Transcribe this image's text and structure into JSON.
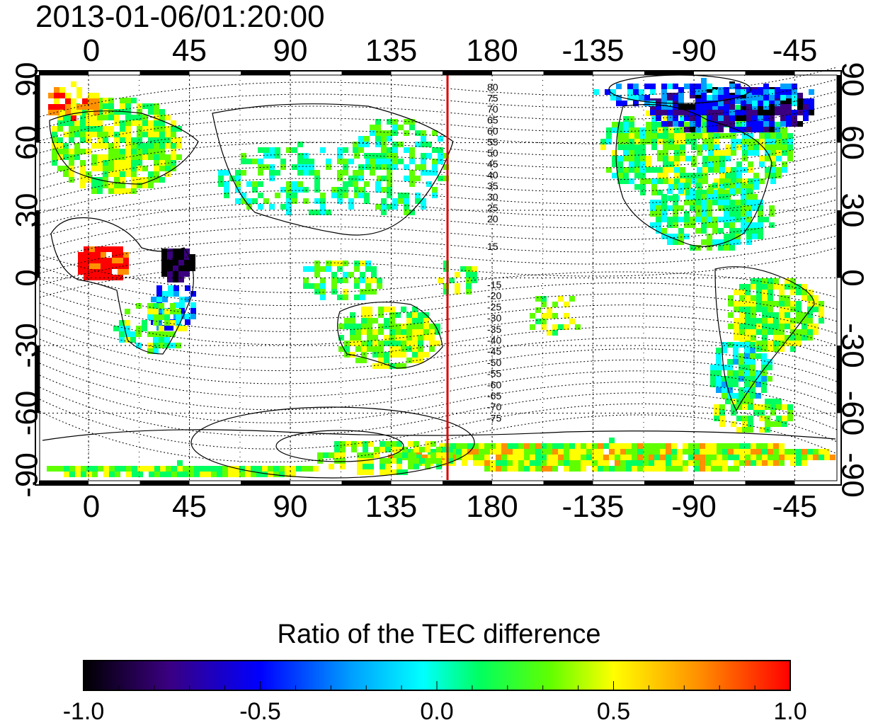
{
  "title": "2013-01-06/01:20:00",
  "map": {
    "x_tick_labels": [
      "0",
      "45",
      "90",
      "135",
      "180",
      "-135",
      "-90",
      "-45"
    ],
    "y_tick_labels": [
      "90",
      "60",
      "30",
      "0",
      "-30",
      "-60",
      "-90"
    ],
    "contour_labels_north": [
      "80",
      "75",
      "70",
      "65",
      "60",
      "55",
      "50",
      "45",
      "40",
      "35",
      "30",
      "25",
      "20",
      "15"
    ],
    "contour_labels_south": [
      "-15",
      "-20",
      "-25",
      "-30",
      "-35",
      "-40",
      "-45",
      "-50",
      "-55",
      "-60",
      "-65",
      "-70",
      "-75"
    ],
    "colors": {
      "reference_line": "#dd0000",
      "frame": "#000000",
      "background": "#ffffff"
    }
  },
  "colorbar": {
    "title": "Ratio of the TEC difference",
    "tick_labels": [
      "-1.0",
      "-0.5",
      "0.0",
      "0.5",
      "1.0"
    ],
    "range": [
      -1.0,
      1.0
    ],
    "colormap": [
      "#000000",
      "#3a0080",
      "#0000ff",
      "#00a0ff",
      "#00ffff",
      "#00ff60",
      "#60ff00",
      "#ffff00",
      "#ff9000",
      "#ff0000"
    ]
  }
}
